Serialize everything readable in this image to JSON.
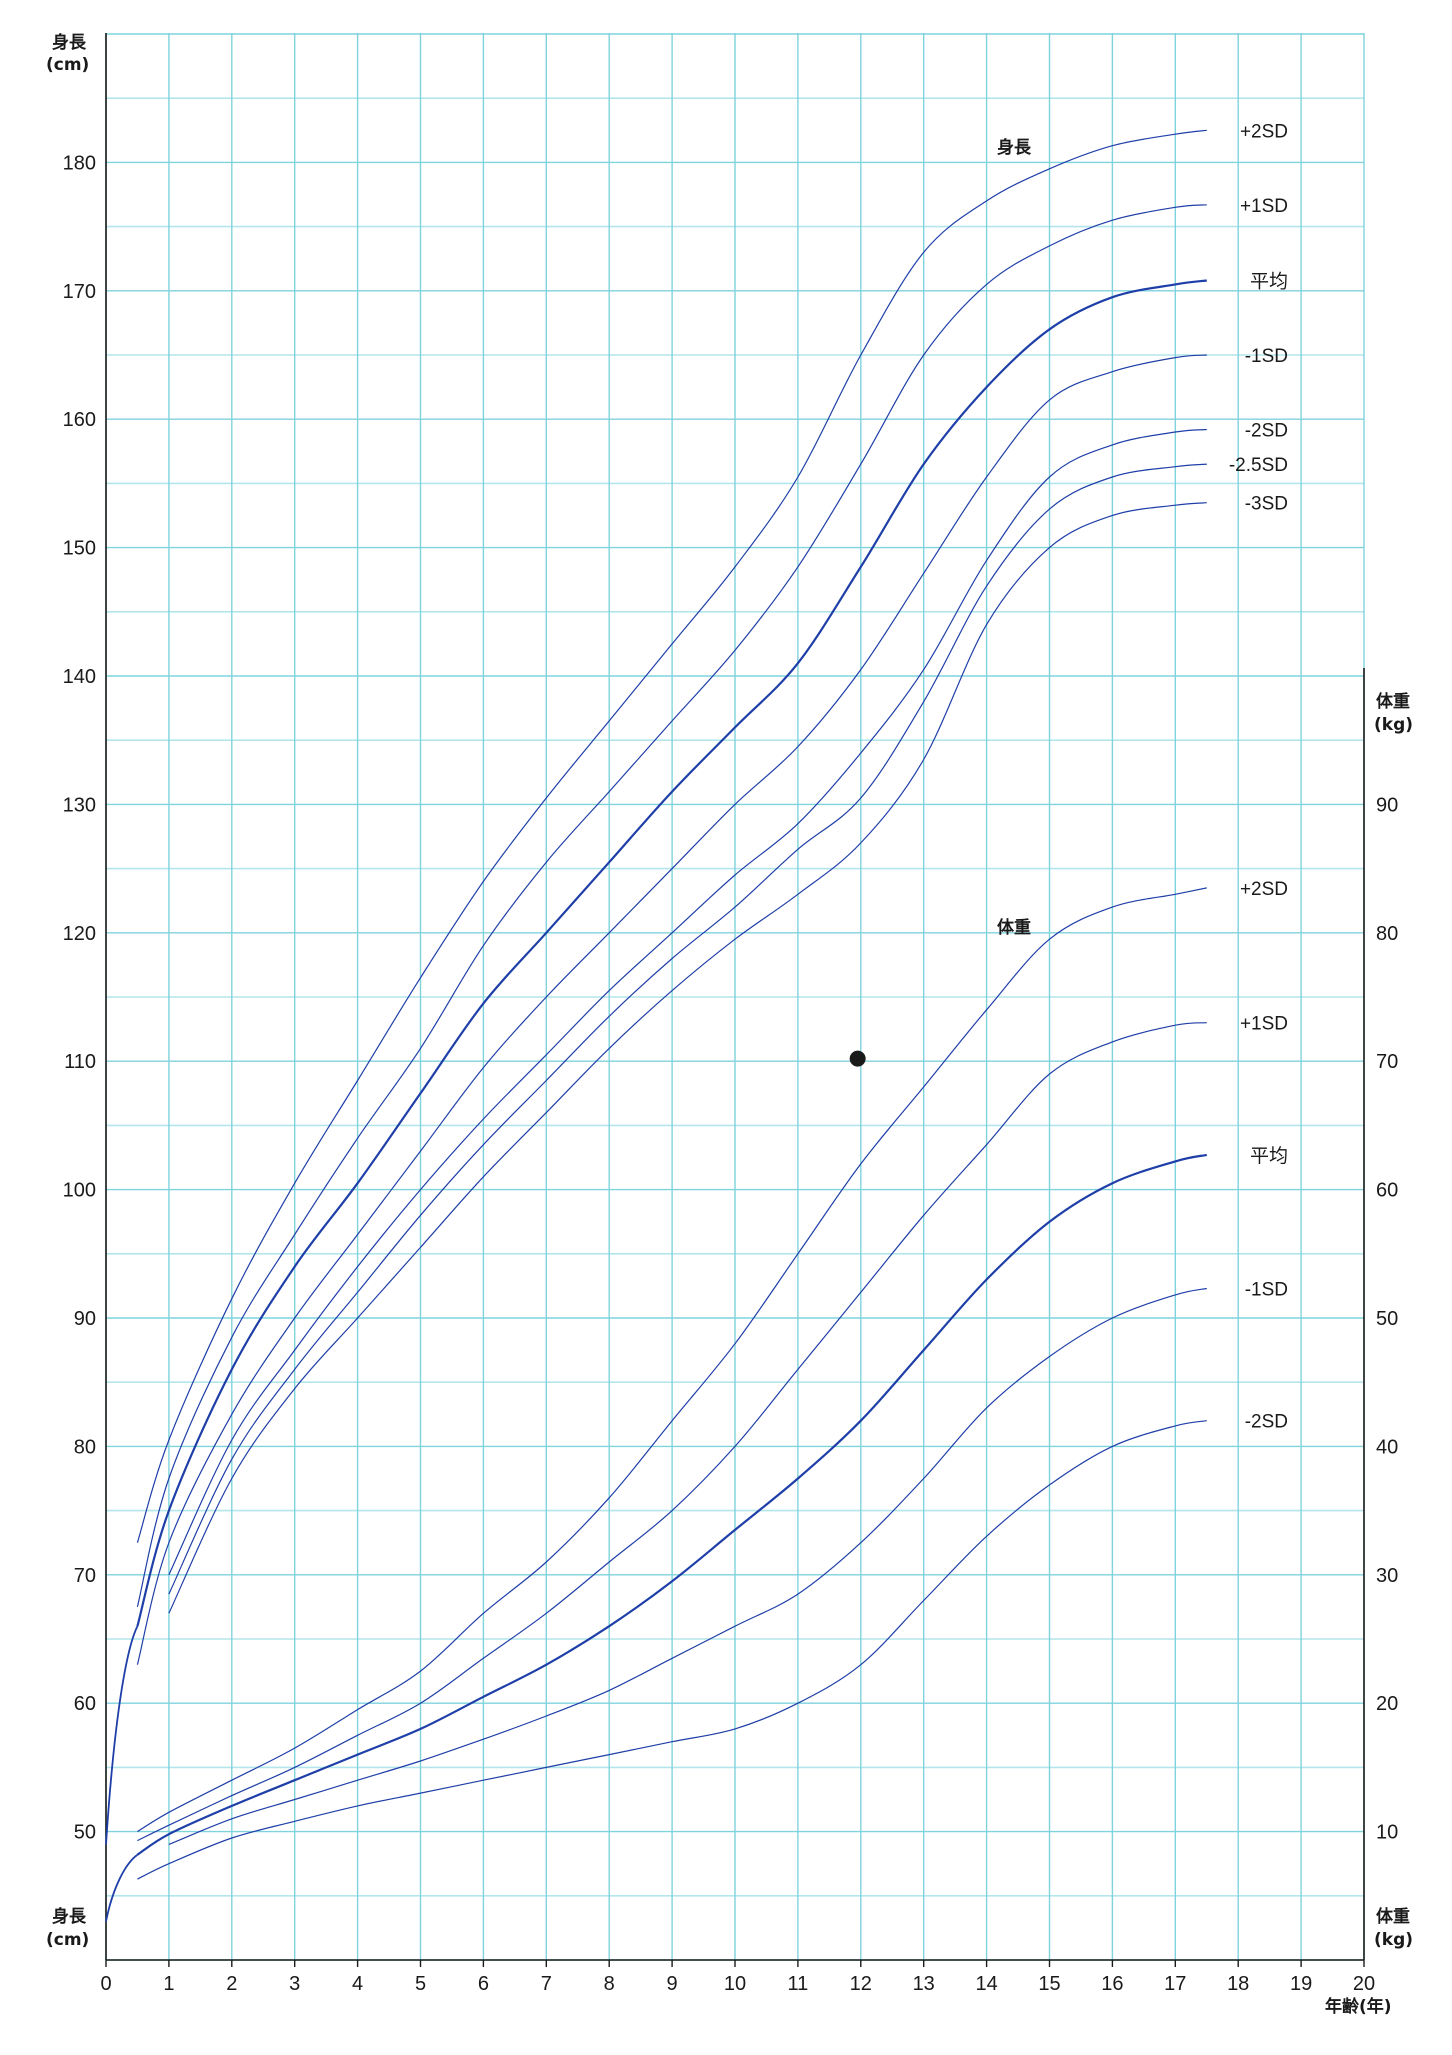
{
  "chart_data": {
    "type": "line",
    "x_axis": {
      "label": "年齢(年)",
      "min": 0,
      "max": 20,
      "ticks": [
        "0",
        "1",
        "2",
        "3",
        "4",
        "5",
        "6",
        "7",
        "8",
        "9",
        "10",
        "11",
        "12",
        "13",
        "14",
        "15",
        "16",
        "17",
        "18",
        "19",
        "20"
      ]
    },
    "y_axis_left": {
      "label_top": [
        "身長",
        "(cm)"
      ],
      "label_bottom": [
        "身長",
        "(cm)"
      ],
      "min": 40,
      "max": 190,
      "ticks": [
        "50",
        "60",
        "70",
        "80",
        "90",
        "100",
        "110",
        "120",
        "130",
        "140",
        "150",
        "160",
        "170",
        "180"
      ]
    },
    "y_axis_right": {
      "label_top": [
        "体重",
        "(kg)"
      ],
      "label_bottom": [
        "体重",
        "(kg)"
      ],
      "min": 0,
      "max": 100,
      "ticks": [
        "10",
        "20",
        "30",
        "40",
        "50",
        "60",
        "70",
        "80",
        "90"
      ]
    },
    "grid": true,
    "colors": {
      "grid_major": "#7fd3dd",
      "grid_minor": "#b3e6ec",
      "curve": "#1f3fa8",
      "axis": "#1a1a1a"
    },
    "height_section_label": "身長",
    "weight_section_label": "体重",
    "height_series": [
      {
        "name": "+2SD",
        "x": [
          0.5,
          1,
          2,
          3,
          4,
          5,
          6,
          7,
          8,
          9,
          10,
          11,
          12,
          13,
          14,
          15,
          16,
          17,
          17.5
        ],
        "values": [
          72.5,
          80.5,
          91.5,
          100.5,
          108.5,
          116.5,
          124,
          130.5,
          136.5,
          142.5,
          148.5,
          155.5,
          165,
          173,
          177,
          179.5,
          181.3,
          182.2,
          182.5
        ]
      },
      {
        "name": "+1SD",
        "x": [
          0.5,
          1,
          2,
          3,
          4,
          5,
          6,
          7,
          8,
          9,
          10,
          11,
          12,
          13,
          14,
          15,
          16,
          17,
          17.5
        ],
        "values": [
          67.5,
          77.5,
          88.5,
          96.5,
          104,
          111,
          119,
          125.5,
          131,
          136.5,
          142,
          148.5,
          156.5,
          165,
          170.5,
          173.5,
          175.5,
          176.5,
          176.7
        ]
      },
      {
        "name": "平均",
        "x": [
          0.5,
          1,
          2,
          3,
          4,
          5,
          6,
          7,
          8,
          9,
          10,
          11,
          12,
          13,
          14,
          15,
          16,
          17,
          17.5
        ],
        "values": [
          66,
          75,
          86,
          94,
          100.5,
          107.5,
          114.5,
          120,
          125.5,
          131,
          136,
          141,
          148.5,
          156.5,
          162.5,
          167,
          169.5,
          170.5,
          170.8
        ]
      },
      {
        "name": "-1SD",
        "x": [
          0.5,
          1,
          2,
          3,
          4,
          5,
          6,
          7,
          8,
          9,
          10,
          11,
          12,
          13,
          14,
          15,
          16,
          17,
          17.5
        ],
        "values": [
          63,
          72.5,
          82.5,
          90,
          96.5,
          103,
          109.5,
          115,
          120,
          125,
          130,
          134.5,
          140.5,
          148,
          155.5,
          161.5,
          163.7,
          164.8,
          165
        ]
      },
      {
        "name": "-2SD",
        "x": [
          1,
          2,
          3,
          4,
          5,
          6,
          7,
          8,
          9,
          10,
          11,
          12,
          13,
          14,
          15,
          16,
          17,
          17.5
        ],
        "values": [
          70,
          80.5,
          87.5,
          94,
          100,
          105.5,
          110.5,
          115.5,
          120,
          124.5,
          128.5,
          134,
          140.5,
          149,
          155.5,
          158,
          159,
          159.2
        ]
      },
      {
        "name": "-2.5SD",
        "x": [
          1,
          2,
          3,
          4,
          5,
          6,
          7,
          8,
          9,
          10,
          11,
          12,
          13,
          14,
          15,
          16,
          17,
          17.5
        ],
        "values": [
          68.5,
          79,
          86,
          92,
          98,
          103.5,
          108.5,
          113.5,
          118,
          122,
          126.5,
          130.5,
          138,
          147,
          153,
          155.5,
          156.3,
          156.5
        ]
      },
      {
        "name": "-3SD",
        "x": [
          1,
          2,
          3,
          4,
          5,
          6,
          7,
          8,
          9,
          10,
          11,
          12,
          13,
          14,
          15,
          16,
          17,
          17.5
        ],
        "values": [
          67,
          77.5,
          84.5,
          90,
          95.5,
          101,
          106,
          111,
          115.5,
          119.5,
          123,
          127,
          133.5,
          144,
          150,
          152.5,
          153.3,
          153.5
        ]
      }
    ],
    "weight_series": [
      {
        "name": "+2SD",
        "x": [
          0.5,
          1,
          2,
          3,
          4,
          5,
          6,
          7,
          8,
          9,
          10,
          11,
          12,
          13,
          14,
          15,
          16,
          17,
          17.5
        ],
        "values": [
          10,
          11.5,
          14,
          16.5,
          19.5,
          22.5,
          27,
          31,
          36,
          42,
          48,
          55,
          62,
          68,
          74,
          79.5,
          82,
          83,
          83.5
        ]
      },
      {
        "name": "+1SD",
        "x": [
          0.5,
          1,
          2,
          3,
          4,
          5,
          6,
          7,
          8,
          9,
          10,
          11,
          12,
          13,
          14,
          15,
          16,
          17,
          17.5
        ],
        "values": [
          9.3,
          10.5,
          12.8,
          15,
          17.5,
          20,
          23.5,
          27,
          31,
          35,
          40,
          46,
          52,
          58,
          63.5,
          69,
          71.5,
          72.8,
          73
        ]
      },
      {
        "name": "平均",
        "x": [
          0.5,
          1,
          2,
          3,
          4,
          5,
          6,
          7,
          8,
          9,
          10,
          11,
          12,
          13,
          14,
          15,
          16,
          17,
          17.5
        ],
        "values": [
          8.2,
          9.8,
          12,
          14,
          16,
          18,
          20.5,
          23,
          26,
          29.5,
          33.5,
          37.5,
          42,
          47.5,
          53,
          57.5,
          60.5,
          62.2,
          62.7
        ]
      },
      {
        "name": "-1SD",
        "x": [
          1,
          2,
          3,
          4,
          5,
          6,
          7,
          8,
          9,
          10,
          11,
          12,
          13,
          14,
          15,
          16,
          17,
          17.5
        ],
        "values": [
          9,
          11,
          12.5,
          14,
          15.5,
          17.2,
          19,
          21,
          23.5,
          26,
          28.5,
          32.5,
          37.5,
          43,
          47,
          50,
          51.8,
          52.3
        ]
      },
      {
        "name": "-2SD",
        "x": [
          0.5,
          1,
          2,
          3,
          4,
          5,
          6,
          7,
          8,
          9,
          10,
          11,
          12,
          13,
          14,
          15,
          16,
          17,
          17.5
        ],
        "values": [
          6.3,
          7.5,
          9.5,
          10.8,
          12,
          13,
          14,
          15,
          16,
          17,
          18,
          20,
          23,
          28,
          33,
          37,
          40,
          41.6,
          42
        ]
      }
    ],
    "point": {
      "x": 11.95,
      "y": 110.2
    }
  }
}
